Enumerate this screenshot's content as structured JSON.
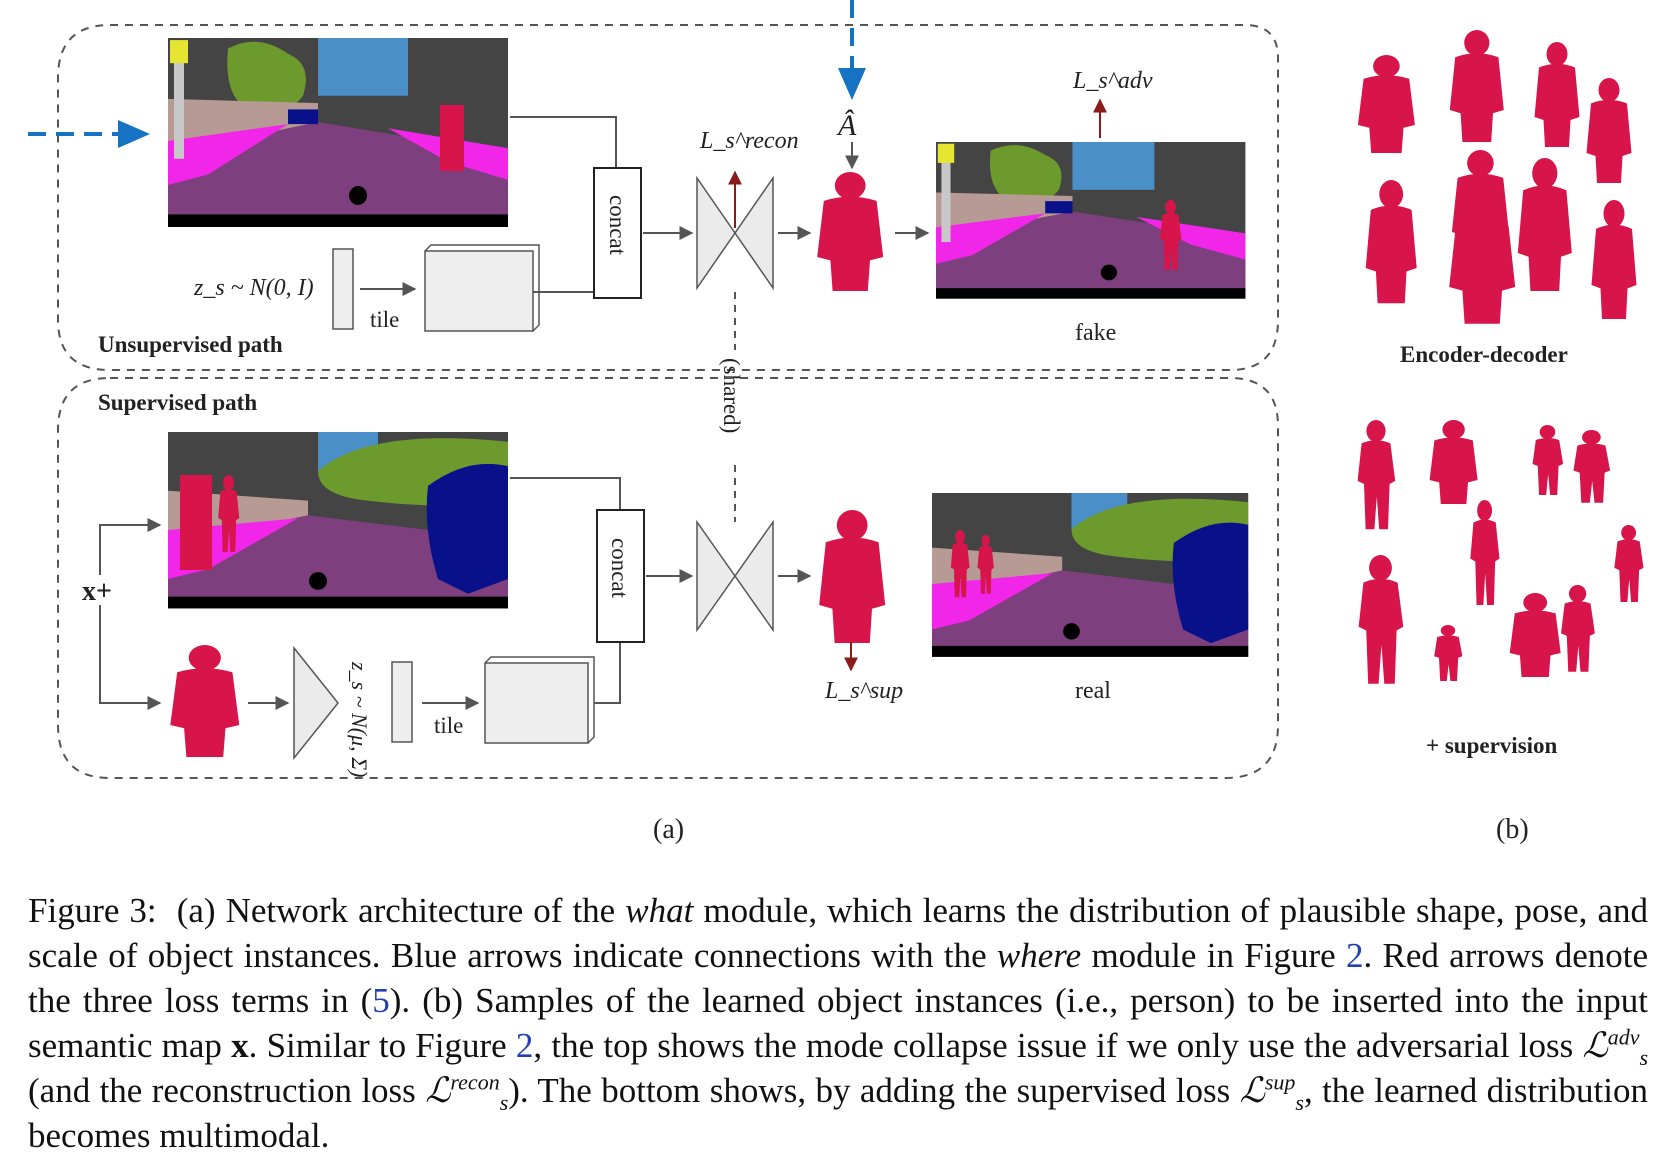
{
  "figure": {
    "unsupervised_path_label": "Unsupervised path",
    "supervised_path_label": "Supervised path",
    "concat_label": "concat",
    "tile_label": "tile",
    "shared_label": "(shared)",
    "z_unsup_label": "z_s ~ N(0, I)",
    "z_sup_label": "z_s ~ N(μ, Σ)",
    "x_plus_label": "x+",
    "a_hat_label": "Â",
    "loss_recon_label": "L_s^recon",
    "loss_adv_label": "L_s^adv",
    "loss_sup_label": "L_s^sup",
    "fake_label": "fake",
    "real_label": "real",
    "panel_b_top_label": "Encoder-decoder",
    "panel_b_bottom_label": "+ supervision",
    "subfig_a_label": "(a)",
    "subfig_b_label": "(b)"
  },
  "colors": {
    "instance_red": "#d7154a",
    "road_purple": "#7d3f7d",
    "sidewalk_magenta": "#f226e8",
    "sky_blue": "#4a8fc7",
    "vegetation_green": "#6d9a2c",
    "building_gray": "#444444",
    "car_navy": "#08108a",
    "blue_arrow": "#1673c4",
    "red_arrow": "#8b1a1a"
  },
  "caption": {
    "figure_number": "Figure 3:",
    "seg_1": "(a) Network architecture of the ",
    "what_word": "what",
    "seg_2": " module, which learns the distribution of plausible shape, pose, and scale of object instances. Blue arrows indicate connections with the ",
    "where_word": "where",
    "seg_3": " module in Figure ",
    "ref_figure_2": "2",
    "seg_4": ". Red arrows denote the three loss terms in (",
    "ref_eq_5": "5",
    "seg_5": "). (b) Samples of the learned object instances (i.e., person) to be inserted into the input semantic map ",
    "x_symbol": "x",
    "seg_6": ". Similar to Figure ",
    "ref_figure_2b": "2",
    "seg_7": ", the top shows the mode collapse issue if we only use the adversarial loss ",
    "loss_adv": "ℒ",
    "loss_adv_sup": "adv",
    "loss_adv_sub": "s",
    "seg_8": " (and the reconstruction loss ",
    "loss_recon": "ℒ",
    "loss_recon_sup": "recon",
    "loss_recon_sub": "s",
    "seg_9": "). The bottom shows, by adding the supervised loss ",
    "loss_sup": "ℒ",
    "loss_sup_sup": "sup",
    "loss_sup_sub": "s",
    "seg_10": ", the learned distribution becomes multimodal."
  }
}
